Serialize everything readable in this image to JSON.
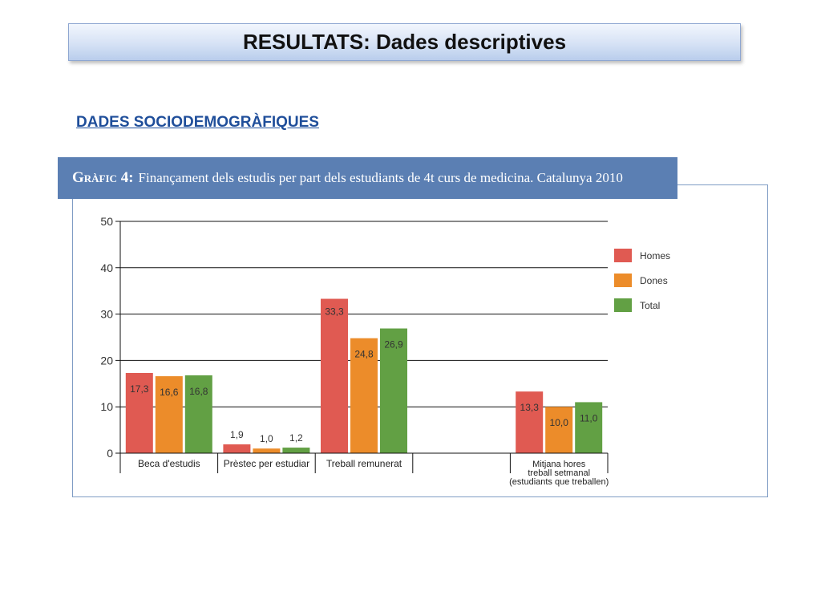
{
  "slide": {
    "title": "RESULTATS: Dades descriptives",
    "section": "DADES SOCIODEMOGRÀFIQUES"
  },
  "chart_header": {
    "lead": "Gràfic 4:",
    "text": "Finançament dels estudis per part dels estudiants de 4t curs de medicina. Catalunya 2010"
  },
  "chart_data": {
    "type": "bar",
    "title": "Gràfic 4: Finançament dels estudis per part dels estudiants de 4t curs de medicina. Catalunya 2010",
    "categories": [
      "Beca d'estudis",
      "Prèstec per estudiar",
      "Treball remunerat",
      "",
      "Mitjana hores treball setmanal (estudiants que treballen)"
    ],
    "category_lines": [
      [
        "Beca d'estudis"
      ],
      [
        "Prèstec per estudiar"
      ],
      [
        "Treball remunerat"
      ],
      [],
      [
        "Mitjana hores",
        "treball setmanal",
        "(estudiants que treballen)"
      ]
    ],
    "series": [
      {
        "name": "Homes",
        "color": "#e05a52",
        "values": [
          17.3,
          1.9,
          33.3,
          null,
          13.3
        ],
        "labels": [
          "17,3",
          "1,9",
          "33,3",
          "",
          "13,3"
        ]
      },
      {
        "name": "Dones",
        "color": "#ec8c2a",
        "values": [
          16.6,
          1.0,
          24.8,
          null,
          10.0
        ],
        "labels": [
          "16,6",
          "1,0",
          "24,8",
          "",
          "10,0"
        ]
      },
      {
        "name": "Total",
        "color": "#62a044",
        "values": [
          16.8,
          1.2,
          26.9,
          null,
          11.0
        ],
        "labels": [
          "16,8",
          "1,2",
          "26,9",
          "",
          "11,0"
        ]
      }
    ],
    "ylim": [
      0,
      50
    ],
    "yticks": [
      0,
      10,
      20,
      30,
      40,
      50
    ],
    "grid": true,
    "legend": "right",
    "xlabel": "",
    "ylabel": ""
  }
}
